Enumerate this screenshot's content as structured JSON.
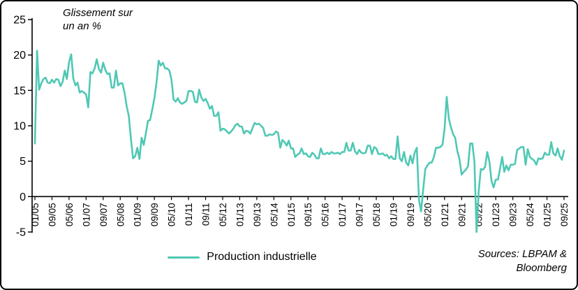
{
  "chart_data": {
    "type": "line",
    "annotation": "Glissement sur\nun an %",
    "source_note": "Sources: LBPAM &\nBloomberg",
    "x_unit": "month",
    "x_start": "01/05",
    "x_end": "09/25",
    "x_tick_step": 8,
    "x_tick_labels": [
      "01/05",
      "09/05",
      "05/06",
      "01/07",
      "09/07",
      "05/08",
      "01/09",
      "09/09",
      "05/10",
      "01/11",
      "09/11",
      "05/12",
      "01/13",
      "09/13",
      "05/14",
      "01/15",
      "09/15",
      "05/16",
      "01/17",
      "09/17",
      "05/18",
      "01/19",
      "09/19",
      "05/20",
      "01/21",
      "09/21",
      "05/22",
      "01/23",
      "09/23",
      "05/24",
      "01/25",
      "09/25"
    ],
    "y_ticks": [
      25,
      20,
      15,
      10,
      5,
      0,
      -5
    ],
    "ylim": [
      -5,
      25
    ],
    "grid": false,
    "legend_position": "bottom",
    "axis_color": "#000000",
    "series": [
      {
        "name": "Production industrielle",
        "color": "#4FC8B4",
        "values": [
          7.5,
          20.6,
          15.1,
          16.0,
          16.6,
          16.8,
          16.1,
          16.0,
          16.5,
          16.1,
          16.6,
          16.5,
          15.6,
          16.2,
          17.8,
          16.6,
          19.0,
          20.1,
          16.7,
          15.7,
          16.1,
          14.7,
          14.9,
          14.7,
          14.4,
          12.6,
          17.6,
          17.4,
          18.1,
          19.4,
          18.0,
          17.5,
          18.9,
          17.9,
          17.3,
          17.4,
          15.4,
          15.4,
          17.8,
          15.7,
          16.0,
          16.0,
          14.7,
          12.8,
          11.4,
          8.2,
          5.4,
          5.7,
          6.9,
          5.3,
          8.3,
          7.3,
          8.9,
          10.7,
          10.8,
          12.3,
          13.9,
          16.1,
          19.2,
          18.5,
          18.9,
          18.1,
          18.1,
          17.8,
          16.5,
          13.7,
          13.4,
          13.9,
          13.3,
          13.1,
          13.3,
          13.5,
          14.9,
          14.9,
          14.8,
          13.4,
          13.3,
          15.1,
          14.0,
          13.5,
          13.8,
          13.2,
          12.4,
          12.8,
          11.4,
          11.4,
          11.9,
          9.3,
          9.6,
          9.5,
          9.2,
          8.9,
          9.2,
          9.6,
          10.1,
          10.3,
          9.9,
          9.9,
          8.9,
          9.3,
          9.2,
          8.9,
          9.7,
          10.4,
          10.2,
          10.3,
          10.0,
          9.7,
          8.6,
          8.6,
          8.8,
          8.7,
          8.8,
          9.2,
          9.0,
          6.9,
          8.0,
          7.7,
          7.2,
          7.9,
          6.8,
          6.8,
          5.6,
          5.9,
          6.1,
          6.8,
          6.0,
          6.1,
          5.7,
          5.6,
          6.2,
          5.9,
          5.4,
          5.4,
          6.8,
          6.0,
          6.0,
          6.2,
          6.0,
          6.3,
          6.1,
          6.1,
          6.2,
          6.0,
          6.3,
          6.3,
          7.6,
          6.5,
          6.5,
          7.6,
          6.4,
          6.0,
          6.6,
          6.2,
          6.1,
          6.2,
          7.2,
          7.2,
          6.0,
          7.0,
          6.8,
          6.0,
          6.0,
          6.1,
          5.8,
          5.9,
          5.4,
          5.7,
          5.3,
          5.3,
          8.5,
          5.4,
          5.0,
          6.3,
          4.8,
          4.4,
          5.8,
          4.7,
          6.2,
          6.9,
          -0.5,
          -2.1,
          1.1,
          3.9,
          4.4,
          4.8,
          4.8,
          5.6,
          6.9,
          6.9,
          7.0,
          7.3,
          9.5,
          14.1,
          11.0,
          9.8,
          8.8,
          8.3,
          6.4,
          5.3,
          3.1,
          3.5,
          3.8,
          4.3,
          7.5,
          7.5,
          5.0,
          -5.0,
          0.7,
          3.9,
          3.8,
          4.2,
          6.3,
          5.0,
          2.2,
          1.3,
          2.4,
          2.4,
          3.9,
          5.6,
          3.5,
          4.4,
          3.7,
          4.5,
          4.5,
          4.6,
          6.6,
          6.8,
          7.0,
          7.0,
          4.5,
          6.7,
          5.6,
          5.3,
          5.1,
          4.5,
          5.4,
          5.3,
          5.4,
          6.2,
          5.9,
          5.9,
          7.7,
          6.1,
          5.8,
          6.8,
          5.7,
          5.2,
          6.5
        ]
      }
    ]
  }
}
